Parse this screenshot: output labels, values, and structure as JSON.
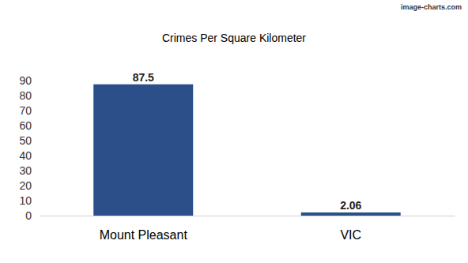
{
  "chart_data": {
    "type": "bar",
    "title": "Crimes Per Square Kilometer",
    "annotations": [
      "image-charts.com"
    ],
    "categories": [
      "Mount Pleasant",
      "VIC"
    ],
    "values": [
      87.5,
      2.06
    ],
    "color": "#2b5089",
    "ylim": [
      0,
      90
    ],
    "yticks": [
      0,
      10,
      20,
      30,
      40,
      50,
      60,
      70,
      80,
      90
    ],
    "grid": false,
    "data_labels": true
  }
}
